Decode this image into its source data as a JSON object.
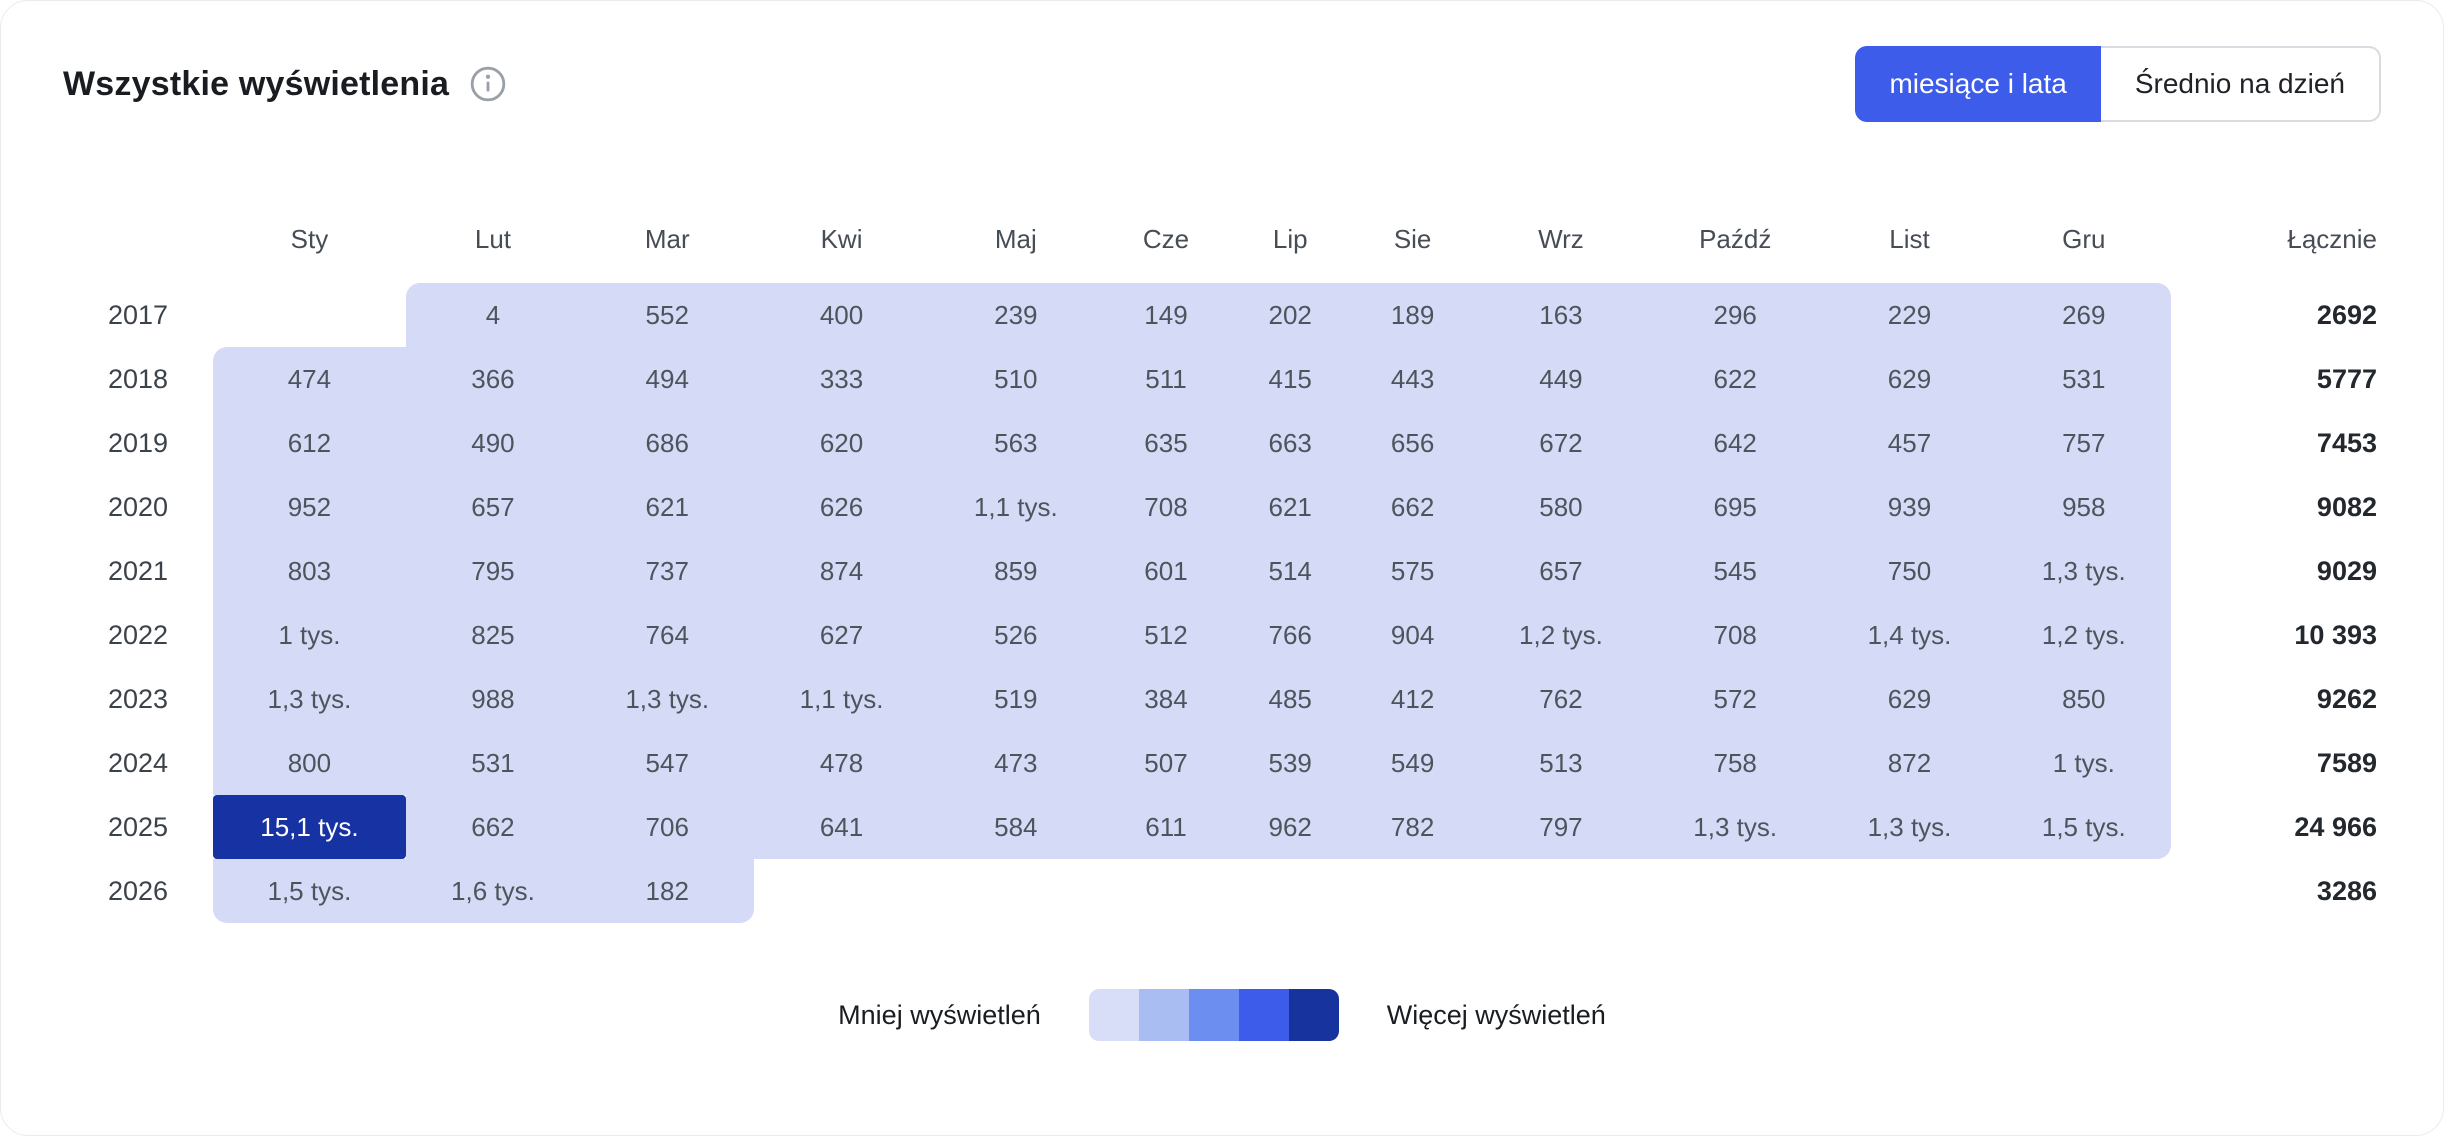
{
  "header": {
    "title": "Wszystkie wyświetlenia",
    "toggle": {
      "selected_label": "miesiące i lata",
      "unselected_label": "Średnio na dzień"
    }
  },
  "colors": {
    "accent": "#3c5ce9",
    "dark_cell": "#1733a3",
    "lavender_cell": "#d5dbf6",
    "legend_scale": [
      "#d9def8",
      "#a9bdf2",
      "#6b8ef0",
      "#3c5ce9",
      "#16339e"
    ]
  },
  "chart_data": {
    "type": "heatmap",
    "title": "Wszystkie wyświetlenia",
    "columns": [
      "Sty",
      "Lut",
      "Mar",
      "Kwi",
      "Maj",
      "Cze",
      "Lip",
      "Sie",
      "Wrz",
      "Paźdź",
      "List",
      "Gru"
    ],
    "total_label": "Łącznie",
    "rows": [
      {
        "year": "2017",
        "values": [
          "",
          "4",
          "552",
          "400",
          "239",
          "149",
          "202",
          "189",
          "163",
          "296",
          "229",
          "269"
        ],
        "total": "2692"
      },
      {
        "year": "2018",
        "values": [
          "474",
          "366",
          "494",
          "333",
          "510",
          "511",
          "415",
          "443",
          "449",
          "622",
          "629",
          "531"
        ],
        "total": "5777"
      },
      {
        "year": "2019",
        "values": [
          "612",
          "490",
          "686",
          "620",
          "563",
          "635",
          "663",
          "656",
          "672",
          "642",
          "457",
          "757"
        ],
        "total": "7453"
      },
      {
        "year": "2020",
        "values": [
          "952",
          "657",
          "621",
          "626",
          "1,1 tys.",
          "708",
          "621",
          "662",
          "580",
          "695",
          "939",
          "958"
        ],
        "total": "9082"
      },
      {
        "year": "2021",
        "values": [
          "803",
          "795",
          "737",
          "874",
          "859",
          "601",
          "514",
          "575",
          "657",
          "545",
          "750",
          "1,3 tys."
        ],
        "total": "9029"
      },
      {
        "year": "2022",
        "values": [
          "1 tys.",
          "825",
          "764",
          "627",
          "526",
          "512",
          "766",
          "904",
          "1,2 tys.",
          "708",
          "1,4 tys.",
          "1,2 tys."
        ],
        "total": "10 393"
      },
      {
        "year": "2023",
        "values": [
          "1,3 tys.",
          "988",
          "1,3 tys.",
          "1,1 tys.",
          "519",
          "384",
          "485",
          "412",
          "762",
          "572",
          "629",
          "850"
        ],
        "total": "9262"
      },
      {
        "year": "2024",
        "values": [
          "800",
          "531",
          "547",
          "478",
          "473",
          "507",
          "539",
          "549",
          "513",
          "758",
          "872",
          "1 tys."
        ],
        "total": "7589"
      },
      {
        "year": "2025",
        "values": [
          "15,1 tys.",
          "662",
          "706",
          "641",
          "584",
          "611",
          "962",
          "782",
          "797",
          "1,3 tys.",
          "1,3 tys.",
          "1,5 tys."
        ],
        "total": "24 966"
      },
      {
        "year": "2026",
        "values": [
          "1,5 tys.",
          "1,6 tys.",
          "182",
          "",
          "",
          "",
          "",
          "",
          "",
          "",
          "",
          ""
        ],
        "total": "3286"
      }
    ],
    "max_cell": {
      "row_index": 8,
      "col_index": 0
    }
  },
  "legend": {
    "less_label": "Mniej wyświetleń",
    "more_label": "Więcej wyświetleń"
  }
}
